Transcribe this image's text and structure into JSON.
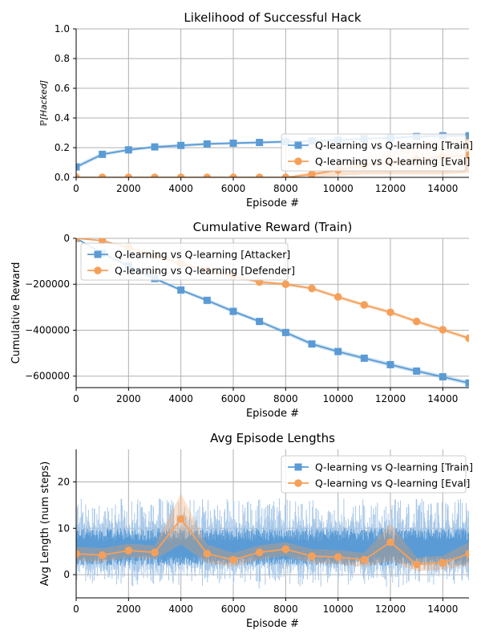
{
  "colors": {
    "train": "#5a9bd5",
    "eval": "#f5a05a",
    "train_light": "#a8c8e8",
    "eval_light": "#f0c8a0"
  },
  "chart_data": [
    {
      "type": "line",
      "title": "Likelihood of Successful Hack",
      "xlabel": "Episode #",
      "ylabel": "ℙ[Hacked]",
      "xlim": [
        0,
        15000
      ],
      "ylim": [
        0,
        1.0
      ],
      "xticks": [
        0,
        2000,
        4000,
        6000,
        8000,
        10000,
        12000,
        14000
      ],
      "xtick_labels": [
        "0",
        "2000",
        "4000",
        "6000",
        "8000",
        "10000",
        "12000",
        "14000"
      ],
      "yticks": [
        0,
        0.2,
        0.4,
        0.6,
        0.8,
        1.0
      ],
      "ytick_labels": [
        "0.0",
        "0.2",
        "0.4",
        "0.6",
        "0.8",
        "1.0"
      ],
      "grid": true,
      "legend": "lower-right",
      "series": [
        {
          "name": "Q-learning vs Q-learning [Train]",
          "marker": "square",
          "color": "#5a9bd5",
          "x": [
            0,
            1000,
            2000,
            3000,
            4000,
            5000,
            6000,
            7000,
            8000,
            9000,
            10000,
            11000,
            12000,
            13000,
            14000,
            15000
          ],
          "y": [
            0.07,
            0.155,
            0.185,
            0.205,
            0.215,
            0.225,
            0.23,
            0.235,
            0.24,
            0.245,
            0.25,
            0.26,
            0.265,
            0.275,
            0.28,
            0.28
          ],
          "band": [
            0.015,
            0.012,
            0.01,
            0.01,
            0.01,
            0.01,
            0.01,
            0.01,
            0.01,
            0.01,
            0.01,
            0.01,
            0.01,
            0.01,
            0.01,
            0.01
          ]
        },
        {
          "name": "Q-learning vs Q-learning [Eval]",
          "marker": "circle",
          "color": "#f5a05a",
          "x": [
            0,
            1000,
            2000,
            3000,
            4000,
            5000,
            6000,
            7000,
            8000,
            9000,
            10000,
            11000,
            12000,
            13000,
            14000,
            15000
          ],
          "y": [
            0.0,
            0.0,
            0.0,
            0.0,
            0.0,
            0.0,
            0.0,
            0.0,
            0.0,
            0.02,
            0.05,
            0.08,
            0.1,
            0.12,
            0.14,
            0.15
          ],
          "band": [
            0,
            0,
            0,
            0,
            0,
            0,
            0,
            0,
            0,
            0.02,
            0.04,
            0.06,
            0.08,
            0.1,
            0.12,
            0.12
          ]
        }
      ]
    },
    {
      "type": "line",
      "title": "Cumulative Reward (Train)",
      "xlabel": "Episode #",
      "ylabel": "Cumulative Reward",
      "xlim": [
        0,
        15000
      ],
      "ylim": [
        -650000,
        0
      ],
      "xticks": [
        0,
        2000,
        4000,
        6000,
        8000,
        10000,
        12000,
        14000
      ],
      "xtick_labels": [
        "0",
        "2000",
        "4000",
        "6000",
        "8000",
        "10000",
        "12000",
        "14000"
      ],
      "yticks": [
        0,
        -200000,
        -400000,
        -600000
      ],
      "ytick_labels": [
        "0",
        "−200000",
        "−400000",
        "−600000"
      ],
      "grid": true,
      "legend": "upper-left",
      "series": [
        {
          "name": "Q-learning vs Q-learning [Attacker]",
          "marker": "square",
          "color": "#5a9bd5",
          "x": [
            0,
            1000,
            2000,
            3000,
            4000,
            5000,
            6000,
            7000,
            8000,
            9000,
            10000,
            11000,
            12000,
            13000,
            14000,
            15000
          ],
          "y": [
            0,
            -65000,
            -120000,
            -175000,
            -225000,
            -270000,
            -318000,
            -362000,
            -410000,
            -460000,
            -493000,
            -522000,
            -550000,
            -578000,
            -603000,
            -630000
          ],
          "band": [
            0,
            5000,
            6000,
            7000,
            7000,
            8000,
            8000,
            8000,
            9000,
            9000,
            9000,
            9000,
            9000,
            9000,
            9000,
            9000
          ]
        },
        {
          "name": "Q-learning vs Q-learning [Defender]",
          "marker": "circle",
          "color": "#f5a05a",
          "x": [
            0,
            1000,
            2000,
            3000,
            4000,
            5000,
            6000,
            7000,
            8000,
            9000,
            10000,
            11000,
            12000,
            13000,
            14000,
            15000
          ],
          "y": [
            0,
            -10000,
            -40000,
            -75000,
            -110000,
            -140000,
            -165000,
            -190000,
            -200000,
            -218000,
            -255000,
            -290000,
            -322000,
            -362000,
            -398000,
            -435000
          ],
          "band": [
            0,
            3000,
            5000,
            6000,
            6000,
            7000,
            7000,
            7000,
            7000,
            7000,
            8000,
            8000,
            8000,
            8000,
            8000,
            8000
          ]
        }
      ]
    },
    {
      "type": "line",
      "title": "Avg Episode Lengths",
      "xlabel": "Episode #",
      "ylabel": "Avg Length (num steps)",
      "xlim": [
        0,
        15000
      ],
      "ylim": [
        -5,
        27
      ],
      "xticks": [
        0,
        2000,
        4000,
        6000,
        8000,
        10000,
        12000,
        14000
      ],
      "xtick_labels": [
        "0",
        "2000",
        "4000",
        "6000",
        "8000",
        "10000",
        "12000",
        "14000"
      ],
      "yticks": [
        0,
        10,
        20
      ],
      "ytick_labels": [
        "0",
        "10",
        "20"
      ],
      "grid": true,
      "legend": "upper-right",
      "series": [
        {
          "name": "Q-learning vs Q-learning [Train]",
          "marker": "square",
          "color": "#5a9bd5",
          "x": [
            0,
            15000
          ],
          "y": [
            5.5,
            5.5
          ],
          "noise": {
            "center": 5.5,
            "amp": 4.5,
            "outer_amp": 11
          }
        },
        {
          "name": "Q-learning vs Q-learning [Eval]",
          "marker": "circle",
          "color": "#f5a05a",
          "x": [
            0,
            1000,
            2000,
            3000,
            4000,
            5000,
            6000,
            7000,
            8000,
            9000,
            10000,
            11000,
            12000,
            13000,
            14000,
            15000
          ],
          "y": [
            4.5,
            4.2,
            5.2,
            4.8,
            12.0,
            4.5,
            3.2,
            4.8,
            5.5,
            4.0,
            3.8,
            3.2,
            7.0,
            2.2,
            2.6,
            4.5
          ],
          "band": [
            1.5,
            1.5,
            1.5,
            1.5,
            5.5,
            2.0,
            1.5,
            1.5,
            1.5,
            1.5,
            1.5,
            1.5,
            4.0,
            1.5,
            1.5,
            2.5
          ]
        }
      ]
    }
  ]
}
